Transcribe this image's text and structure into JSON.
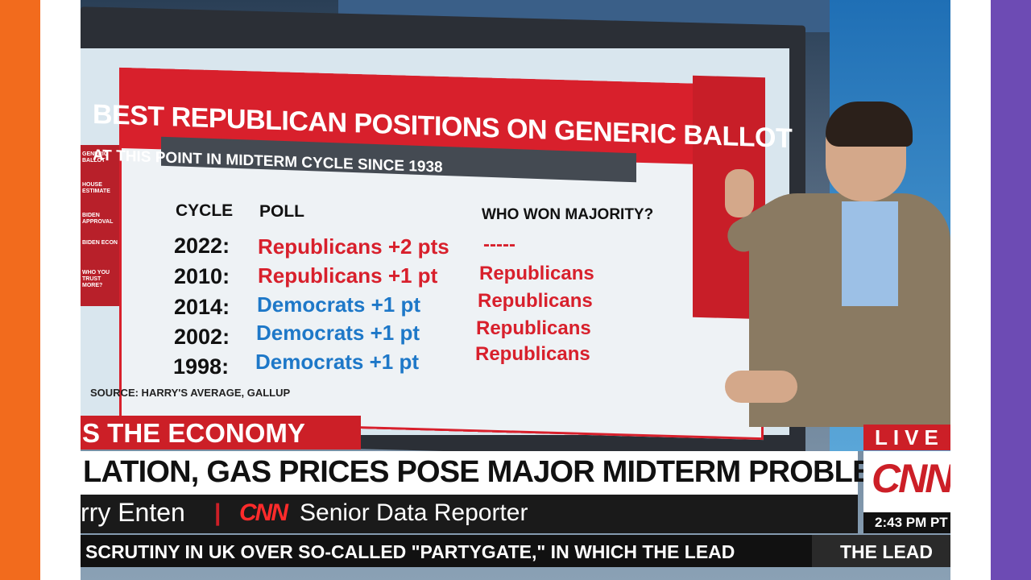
{
  "graphic": {
    "title": "BEST REPUBLICAN POSITIONS ON GENERIC BALLOT",
    "subtitle": "AT THIS POINT IN MIDTERM CYCLE SINCE 1938",
    "headers": {
      "cycle": "CYCLE",
      "poll": "POLL",
      "won": "WHO WON MAJORITY?"
    },
    "rows": [
      {
        "cycle": "2022:",
        "poll": "Republicans +2 pts",
        "won": "-----"
      },
      {
        "cycle": "2010:",
        "poll": "Republicans +1 pt",
        "won": "Republicans"
      },
      {
        "cycle": "2014:",
        "poll": "Democrats +1 pt",
        "won": "Republicans"
      },
      {
        "cycle": "2002:",
        "poll": "Democrats +1 pt",
        "won": "Republicans"
      },
      {
        "cycle": "1998:",
        "poll": "Democrats +1 pt",
        "won": "Republicans"
      }
    ],
    "source": "SOURCE: HARRY'S AVERAGE, GALLUP",
    "menu": [
      "GENERIC BALLOT",
      "HOUSE ESTIMATE",
      "BIDEN APPROVAL",
      "BIDEN ECON",
      "WHO YOU TRUST MORE?"
    ]
  },
  "lower_third": {
    "topic": "S THE ECONOMY",
    "headline": "LATION, GAS PRICES POSE MAJOR MIDTERM PROBLEMS FOR DEMS",
    "name": "rry Enten",
    "separator": "|",
    "network": "CNN",
    "role": "Senior Data Reporter",
    "ticker": "SCRUTINY IN UK OVER SO-CALLED \"PARTYGATE,\" IN WHICH THE LEAD",
    "ticker_right": "THE LEAD"
  },
  "bug": {
    "live": "LIVE",
    "logo": "CNN",
    "time": "2:43 PM PT"
  },
  "colors": {
    "left_bar": "#f26b1d",
    "right_bar": "#6d4bb4",
    "cnn_red": "#cc1f27",
    "dem_blue": "#1e78c8",
    "rep_red": "#d8202c"
  }
}
